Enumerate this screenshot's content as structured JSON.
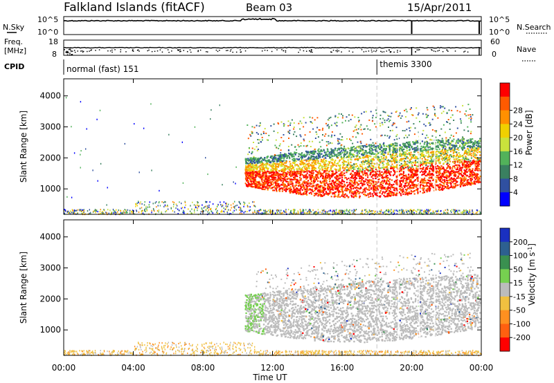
{
  "header": {
    "station": "Falkland Islands (fitACF)",
    "beam": "Beam 03",
    "date": "15/Apr/2011"
  },
  "colors": {
    "power_scale": [
      "#0000ff",
      "#3050a0",
      "#3a8060",
      "#52b25a",
      "#c9e23c",
      "#f0d000",
      "#ff9000",
      "#ff5a00",
      "#ff0000"
    ],
    "velocity_scale": [
      "#1a30c0",
      "#2d6090",
      "#3a9050",
      "#76d050",
      "#bcbcbc",
      "#f0c040",
      "#ff9020",
      "#ff6010",
      "#ff0000"
    ],
    "ground_scatter": "#bcbcbc"
  },
  "chart_data": [
    {
      "type": "line",
      "name": "top-panel",
      "labels": {
        "nsky": "N.Sky",
        "nsearch": "N.Search",
        "freq": "Freq.",
        "freq_unit": "[MHz]",
        "nave": "Nave",
        "cpid": "CPID"
      },
      "left_ticks_noise": [
        "10^5",
        "10^0"
      ],
      "right_ticks_noise": [
        "10^5",
        "10^0"
      ],
      "left_ticks_freq": [
        "18",
        "8"
      ],
      "right_ticks_freq": [
        "60",
        "0"
      ],
      "cpid_segments": [
        {
          "label": "normal (fast) 151",
          "start": "00:00"
        },
        {
          "label": "themis 3300",
          "start": "18:00"
        }
      ],
      "search_spikes": [
        "20:00",
        "24:00"
      ]
    },
    {
      "type": "heatmap",
      "name": "power",
      "ylabel": "Slant Range [km]",
      "yticks": [
        1000,
        2000,
        3000,
        4000
      ],
      "ylim": [
        180,
        4550
      ],
      "colorbar_label": "Power [dB]",
      "colorbar_ticks": [
        4,
        8,
        12,
        16,
        20,
        24,
        28
      ]
    },
    {
      "type": "heatmap",
      "name": "velocity",
      "ylabel": "Slant Range [km]",
      "yticks": [
        1000,
        2000,
        3000,
        4000
      ],
      "ylim": [
        180,
        4550
      ],
      "colorbar_label": "Velocity [m s",
      "colorbar_label_sup": "-1",
      "colorbar_label_end": "]",
      "colorbar_ticks": [
        200,
        100,
        50,
        15,
        -15,
        -50,
        -100,
        -200
      ],
      "xlabel": "Time UT",
      "xticks": [
        "00:00",
        "04:00",
        "08:00",
        "12:00",
        "16:00",
        "20:00",
        "00:00"
      ],
      "xlim_hours": [
        0,
        24
      ]
    }
  ]
}
